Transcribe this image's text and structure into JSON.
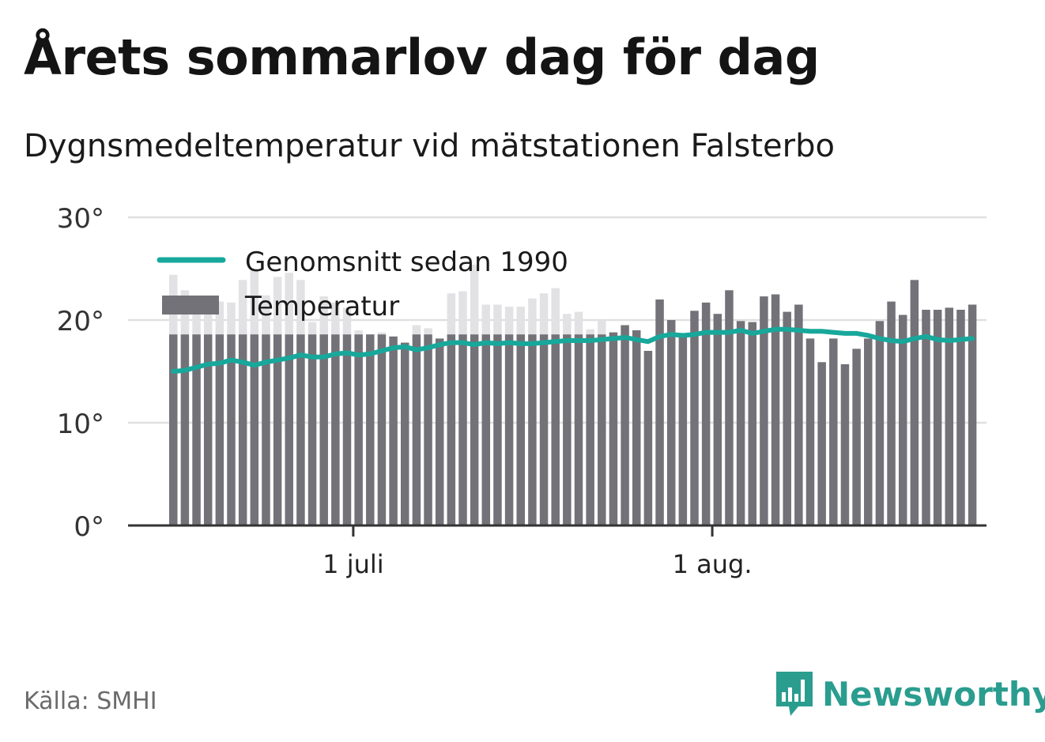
{
  "title": "Årets sommarlov dag för dag",
  "subtitle": "Dygnsmedeltemperatur vid mätstationen Falsterbo",
  "source": "Källa: SMHI",
  "brand": "Newsworthy",
  "colors": {
    "bars": "#737278",
    "bars_light": "#e2e2e4",
    "average": "#17a89b",
    "grid": "#e0e0e0",
    "axis": "#333333",
    "brand": "#2a9d8f"
  },
  "chart_data": {
    "type": "bar",
    "ylim": [
      0,
      30
    ],
    "yticks": [
      {
        "value": 0,
        "label": "0°"
      },
      {
        "value": 10,
        "label": "10°"
      },
      {
        "value": 20,
        "label": "20°"
      },
      {
        "value": 30,
        "label": "30°"
      }
    ],
    "xticks": [
      {
        "index": 16,
        "label": "1 juli"
      },
      {
        "index": 47,
        "label": "1 aug."
      }
    ],
    "grid": true,
    "legend_position": "top-left",
    "series": [
      {
        "name": "Temperatur",
        "kind": "bar",
        "values": [
          24.4,
          22.9,
          21.5,
          20.7,
          21.8,
          21.7,
          23.9,
          24.9,
          22.4,
          24.2,
          24.6,
          23.9,
          19.8,
          22.3,
          21.7,
          21.2,
          19.0,
          18.6,
          18.8,
          18.4,
          17.8,
          19.5,
          19.2,
          18.2,
          22.6,
          22.8,
          25.4,
          21.5,
          21.5,
          21.3,
          21.3,
          22.1,
          22.6,
          23.1,
          20.6,
          20.8,
          19.1,
          20.0,
          18.8,
          19.5,
          19.0,
          17.0,
          22.0,
          20.0,
          18.4,
          20.9,
          21.7,
          20.6,
          22.9,
          19.9,
          19.8,
          22.3,
          22.5,
          20.8,
          21.5,
          18.2,
          15.9,
          18.2,
          15.7,
          17.2,
          18.2,
          19.9,
          21.8,
          20.5,
          23.9,
          21.0,
          21.0,
          21.2,
          21.0,
          21.5
        ]
      },
      {
        "name": "Genomsnitt sedan 1990",
        "kind": "line",
        "values": [
          15.0,
          15.1,
          15.4,
          15.7,
          15.8,
          16.1,
          15.9,
          15.6,
          15.9,
          16.1,
          16.3,
          16.6,
          16.4,
          16.4,
          16.7,
          16.8,
          16.6,
          16.7,
          17.0,
          17.3,
          17.4,
          17.1,
          17.3,
          17.6,
          17.8,
          17.8,
          17.6,
          17.8,
          17.7,
          17.8,
          17.7,
          17.7,
          17.8,
          17.9,
          18.0,
          18.0,
          18.0,
          18.1,
          18.2,
          18.3,
          18.1,
          17.9,
          18.4,
          18.6,
          18.5,
          18.6,
          18.8,
          18.8,
          18.8,
          19.0,
          18.7,
          18.9,
          19.1,
          19.1,
          19.0,
          18.9,
          18.9,
          18.8,
          18.7,
          18.7,
          18.5,
          18.2,
          18.0,
          17.9,
          18.2,
          18.4,
          18.1,
          18.0,
          18.1,
          18.2
        ]
      }
    ]
  }
}
